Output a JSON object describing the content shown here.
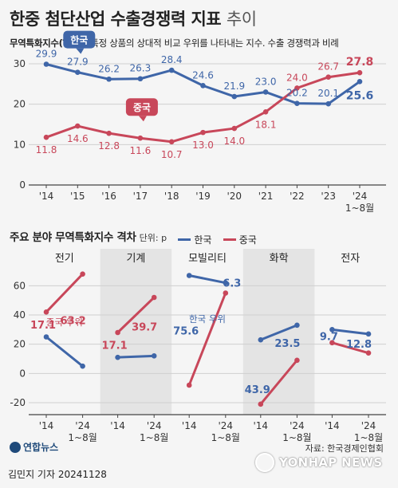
{
  "header": {
    "title": "한중 첨단산업 수출경쟁력 지표",
    "title_suffix": "추이",
    "desc_label": "무역특화지수(TSI)",
    "desc_text": " : 특정 상품의 상대적 비교 우위를 나타내는 지수. 수출 경쟁력과 비례"
  },
  "section2": {
    "title": "주요 분야 무역특화지수 격차",
    "unit": "단위: p"
  },
  "colors": {
    "korea": "#3f66a8",
    "china": "#c8475a",
    "shade": "#e4e4e4",
    "axis": "#444444",
    "grid": "#cfcfcf"
  },
  "chart_data": [
    {
      "type": "line",
      "categories": [
        "'14",
        "'15",
        "'16",
        "'17",
        "'18",
        "'19",
        "'20",
        "'21",
        "'22",
        "'23",
        "'24\n1~8월"
      ],
      "ylim": [
        0,
        30
      ],
      "yticks": [
        0,
        10,
        20,
        30
      ],
      "series": [
        {
          "name": "한국",
          "values": [
            29.9,
            27.9,
            26.2,
            26.3,
            28.4,
            24.6,
            21.9,
            23.0,
            20.2,
            20.1,
            25.6
          ]
        },
        {
          "name": "중국",
          "values": [
            11.8,
            14.6,
            12.8,
            11.6,
            10.7,
            13.0,
            14.0,
            18.1,
            24.0,
            26.7,
            27.8
          ]
        }
      ]
    },
    {
      "type": "line",
      "ylim": [
        -20,
        70
      ],
      "yticks": [
        -20,
        0,
        20,
        40,
        60
      ],
      "legend": [
        "한국",
        "중국"
      ],
      "groups": [
        {
          "name": "전기",
          "x": [
            "'14",
            "'24\n1~8월"
          ],
          "korea": [
            25,
            5
          ],
          "china": [
            42,
            68
          ],
          "gap_labels": [
            "17.1",
            "63.2"
          ],
          "note": "중국 우위",
          "shaded": false
        },
        {
          "name": "기계",
          "x": [
            "'14",
            "'24\n1~8월"
          ],
          "korea": [
            11,
            12
          ],
          "china": [
            28,
            52
          ],
          "gap_labels": [
            "17.1",
            "39.7"
          ],
          "note": "",
          "shaded": true
        },
        {
          "name": "모빌리티",
          "x": [
            "'14",
            "'24\n1~8월"
          ],
          "korea": [
            67,
            62
          ],
          "china": [
            -8,
            55
          ],
          "gap_labels": [
            "75.6",
            "6.3"
          ],
          "note": "한국 우위",
          "shaded": false
        },
        {
          "name": "화학",
          "x": [
            "'14",
            "'24\n1~8월"
          ],
          "korea": [
            23,
            33
          ],
          "china": [
            -21,
            9
          ],
          "gap_labels": [
            "43.9",
            "23.5"
          ],
          "note": "",
          "shaded": true
        },
        {
          "name": "전자",
          "x": [
            "'14",
            "'24\n1~8월"
          ],
          "korea": [
            30,
            27
          ],
          "china": [
            21,
            14
          ],
          "gap_labels": [
            "9.7",
            "12.8"
          ],
          "note": "",
          "shaded": false
        }
      ]
    }
  ],
  "footer": {
    "logo": "연합뉴스",
    "source": "자료: 한국경제인협회",
    "reporter": "김민지 기자  20241128",
    "watermark": "YONHAP NEWS"
  }
}
